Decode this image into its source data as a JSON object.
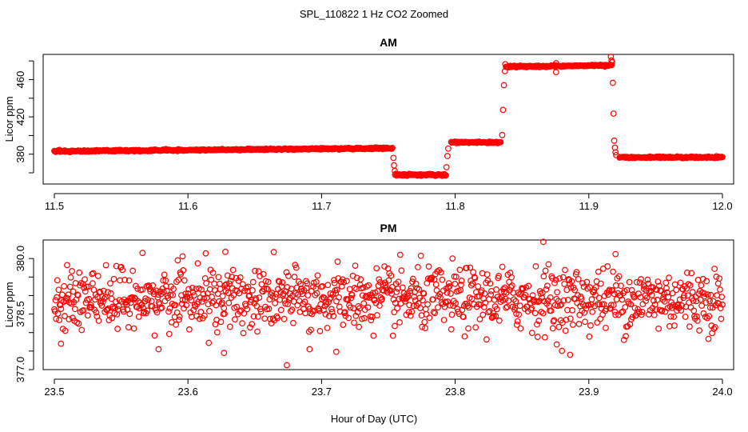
{
  "figure": {
    "suptitle": "SPL_110822  1 Hz CO2 Zoomed",
    "shared_xlabel": "Hour of Day (UTC)"
  },
  "colors": {
    "points": "#ff0000",
    "axes": "#000000",
    "background": "#ffffff"
  },
  "chart_data": [
    {
      "type": "scatter",
      "title": "AM",
      "xlabel": "",
      "ylabel": "Licor ppm",
      "xlim": [
        11.5,
        12.0
      ],
      "ylim": [
        348,
        487
      ],
      "xticks": [
        11.5,
        11.6,
        11.7,
        11.8,
        11.9,
        12.0
      ],
      "xtick_labels": [
        "11.5",
        "11.6",
        "11.7",
        "11.8",
        "11.9",
        "12.0"
      ],
      "yticks": [
        360,
        380,
        400,
        420,
        440,
        460,
        480
      ],
      "ytick_labels": [
        "380",
        "420",
        "460"
      ],
      "ytick_label_values": [
        380,
        420,
        460
      ],
      "marker": "open-circle",
      "series": [
        {
          "name": "CO2",
          "segments": [
            {
              "x_start": 11.5,
              "x_end": 11.753,
              "y_start": 383.2,
              "y_end": 386.3
            },
            {
              "x_start": 11.755,
              "x_end": 11.793,
              "y_start": 357.8,
              "y_end": 357.8
            },
            {
              "x_start": 11.797,
              "x_end": 11.834,
              "y_start": 392.6,
              "y_end": 392.6
            },
            {
              "x_start": 11.838,
              "x_end": 11.917,
              "y_start": 473.8,
              "y_end": 475.2
            },
            {
              "x_start": 11.923,
              "x_end": 12.0,
              "y_start": 376.6,
              "y_end": 376.6
            }
          ],
          "transitions": [
            {
              "x": 11.7538,
              "y": 376.0
            },
            {
              "x": 11.7542,
              "y": 368.0
            },
            {
              "x": 11.7548,
              "y": 362.0
            },
            {
              "x": 11.7935,
              "y": 366.0
            },
            {
              "x": 11.7942,
              "y": 378.0
            },
            {
              "x": 11.7948,
              "y": 386.0
            },
            {
              "x": 11.8352,
              "y": 400.5
            },
            {
              "x": 11.8358,
              "y": 427.5
            },
            {
              "x": 11.8365,
              "y": 454.0
            },
            {
              "x": 11.8372,
              "y": 469.0
            },
            {
              "x": 11.8375,
              "y": 476.5
            },
            {
              "x": 11.8755,
              "y": 477.5
            },
            {
              "x": 11.8755,
              "y": 468.0
            },
            {
              "x": 11.9165,
              "y": 484.5
            },
            {
              "x": 11.917,
              "y": 480.5
            },
            {
              "x": 11.9175,
              "y": 478.5
            },
            {
              "x": 11.918,
              "y": 456.5
            },
            {
              "x": 11.9185,
              "y": 423.5
            },
            {
              "x": 11.919,
              "y": 394.5
            },
            {
              "x": 11.9195,
              "y": 387.0
            },
            {
              "x": 11.92,
              "y": 382.0
            },
            {
              "x": 11.9205,
              "y": 379.0
            }
          ]
        }
      ]
    },
    {
      "type": "scatter",
      "title": "PM",
      "xlabel": "",
      "ylabel": "Licor ppm",
      "xlim": [
        23.5,
        24.0
      ],
      "ylim": [
        377.0,
        380.5
      ],
      "xticks": [
        23.5,
        23.6,
        23.7,
        23.8,
        23.9,
        24.0
      ],
      "xtick_labels": [
        "23.5",
        "23.6",
        "23.7",
        "23.8",
        "23.9",
        "24.0"
      ],
      "yticks": [
        377.0,
        377.5,
        378.0,
        378.5,
        379.0,
        379.5,
        380.0
      ],
      "ytick_labels": [
        "377.0",
        "378.5",
        "380.0"
      ],
      "ytick_label_values": [
        377.0,
        378.5,
        380.0
      ],
      "marker": "open-circle",
      "series": [
        {
          "name": "CO2",
          "x_start": 23.5,
          "x_end": 24.0,
          "n_points": 1100,
          "mean": 378.9,
          "spread": 0.42,
          "min": 377.1,
          "max": 380.5,
          "extreme_points": [
            {
              "x": 23.866,
              "y": 380.45
            },
            {
              "x": 23.628,
              "y": 380.18
            },
            {
              "x": 23.566,
              "y": 380.15
            },
            {
              "x": 23.92,
              "y": 380.12
            },
            {
              "x": 23.596,
              "y": 380.06
            },
            {
              "x": 23.674,
              "y": 377.12
            },
            {
              "x": 23.627,
              "y": 377.45
            },
            {
              "x": 23.578,
              "y": 377.55
            },
            {
              "x": 23.886,
              "y": 377.4
            },
            {
              "x": 23.691,
              "y": 377.55
            },
            {
              "x": 23.876,
              "y": 377.68
            },
            {
              "x": 23.711,
              "y": 377.48
            },
            {
              "x": 23.505,
              "y": 377.7
            }
          ]
        }
      ]
    }
  ]
}
